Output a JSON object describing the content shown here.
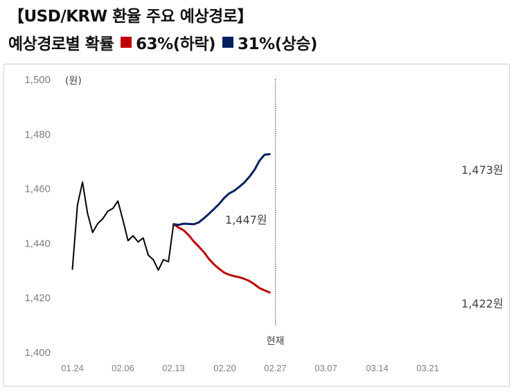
{
  "title": "【USD/KRW 환율 주요 예상경로】",
  "subtitle": {
    "label": "예상경로별 확률",
    "down_label": "63%(하락)",
    "up_label": "31%(상승)"
  },
  "colors": {
    "down": "#c00000",
    "up": "#002060",
    "history": "#000000"
  },
  "chart_data": {
    "type": "line",
    "unit_label": "(원)",
    "ylim": [
      1400,
      1500
    ],
    "y_ticks": [
      "1,500",
      "1,480",
      "1,460",
      "1,440",
      "1,420",
      "1,400"
    ],
    "x_ticks": [
      "01.24",
      "02.06",
      "02.13",
      "02.20",
      "02.27",
      "03.07",
      "03.14",
      "03.21"
    ],
    "divider_label": "현재",
    "series": [
      {
        "key": "history",
        "values": [
          1430.5,
          1454.0,
          1462.5,
          1451.0,
          1444.0,
          1447.2,
          1449.0,
          1451.8,
          1452.8,
          1455.5,
          1448.5,
          1441.0,
          1442.8,
          1440.5,
          1442.0,
          1435.7,
          1434.0,
          1430.2,
          1434.0,
          1433.3,
          1447.0
        ]
      },
      {
        "key": "down",
        "name": "63%(하락)",
        "values": [
          1447.0,
          1445.8,
          1444.8,
          1443.0,
          1440.7,
          1438.8,
          1436.8,
          1434.3,
          1432.3,
          1430.7,
          1429.3,
          1428.5,
          1428.0,
          1427.6,
          1427.0,
          1426.2,
          1425.0,
          1423.6,
          1422.8,
          1422.0
        ]
      },
      {
        "key": "up",
        "name": "31%(상승)",
        "values": [
          1447.0,
          1446.8,
          1447.2,
          1447.1,
          1447.0,
          1447.7,
          1449.2,
          1450.8,
          1452.6,
          1454.4,
          1456.6,
          1458.3,
          1459.3,
          1460.7,
          1462.3,
          1464.4,
          1466.9,
          1470.3,
          1472.5,
          1472.7
        ]
      }
    ],
    "annotations": {
      "current": "1,447원",
      "up_end": "1,473원",
      "down_end": "1,422원"
    }
  }
}
